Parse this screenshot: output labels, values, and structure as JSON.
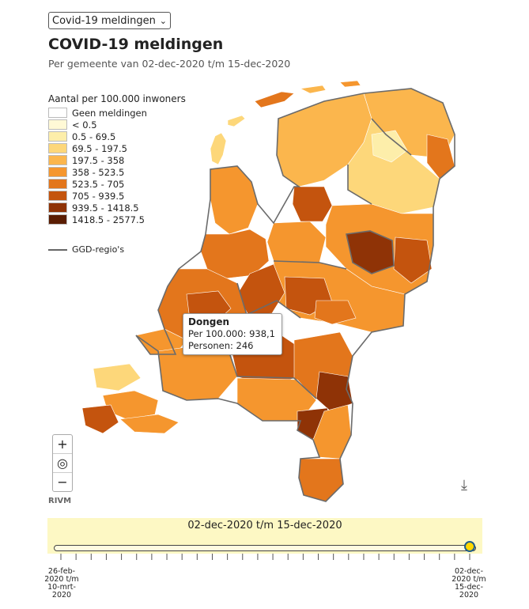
{
  "dataset_select": {
    "value": "Covid-19 meldingen"
  },
  "title": "COVID-19 meldingen",
  "subtitle": "Per gemeente van 02-dec-2020 t/m 15-dec-2020",
  "legend": {
    "title": "Aantal per 100.000 inwoners",
    "items": [
      {
        "label": "Geen meldingen",
        "color": "#ffffff"
      },
      {
        "label": "< 0.5",
        "color": "#fff9d6"
      },
      {
        "label": "0.5 - 69.5",
        "color": "#fdeeaa"
      },
      {
        "label": "69.5 - 197.5",
        "color": "#fdd77a"
      },
      {
        "label": "197.5 - 358",
        "color": "#fbb64d"
      },
      {
        "label": "358 - 523.5",
        "color": "#f5962e"
      },
      {
        "label": "523.5 - 705",
        "color": "#e3761c"
      },
      {
        "label": "705 - 939.5",
        "color": "#c4540e"
      },
      {
        "label": "939.5 - 1418.5",
        "color": "#8f3306"
      },
      {
        "label": "1418.5 - 2577.5",
        "color": "#5a1d02"
      }
    ],
    "ggd_label": "GGD-regio's"
  },
  "tooltip": {
    "name": "Dongen",
    "rate_line": "Per 100.000: 938,1",
    "persons_line": "Personen: 246"
  },
  "zoom": {
    "in": "+",
    "reset": "◎",
    "out": "−"
  },
  "credit": "RIVM",
  "timeline": {
    "period_label": "02-dec-2020 t/m 15-dec-2020",
    "start_label": "26-feb-2020 t/m 10-mrt-2020",
    "end_label": "02-dec-2020 t/m 15-dec-2020",
    "position": 1.0
  }
}
